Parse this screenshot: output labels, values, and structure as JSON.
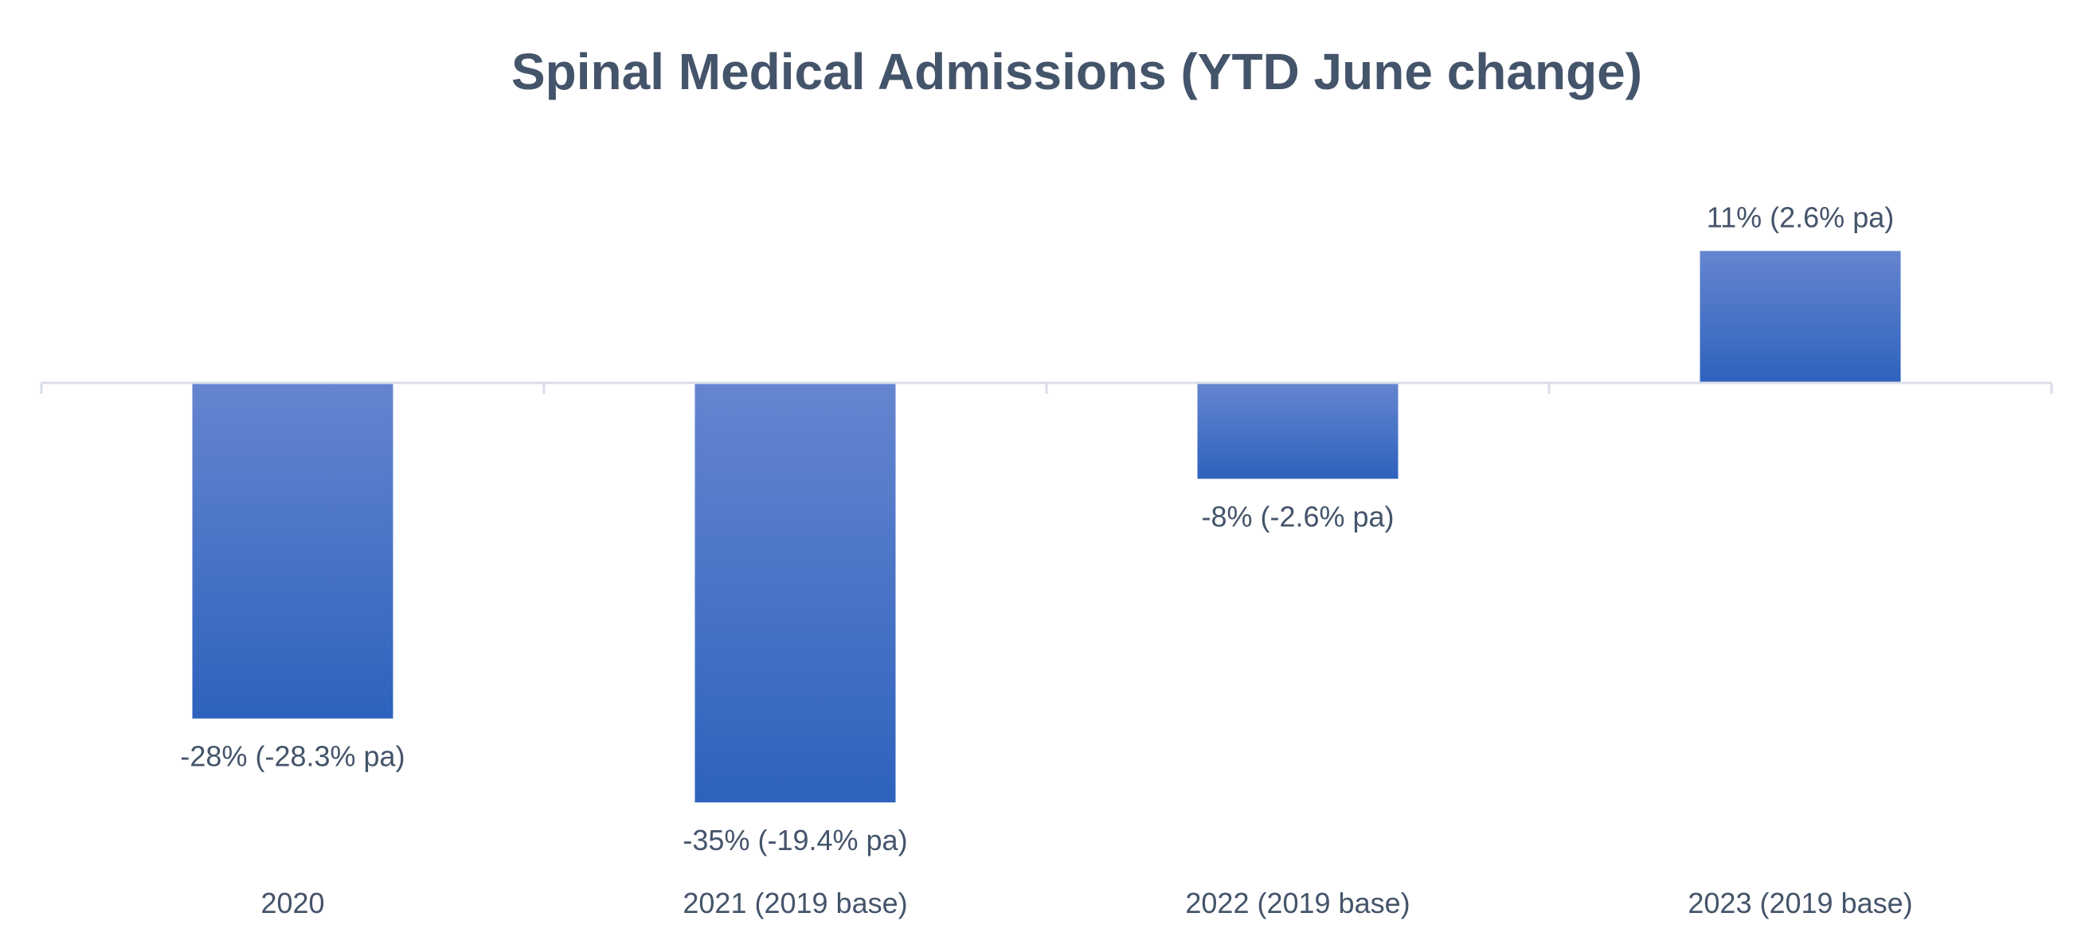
{
  "chart_data": {
    "type": "bar",
    "title": "Spinal Medical Admissions (YTD June change)",
    "categories": [
      "2020",
      "2021 (2019 base)",
      "2022 (2019 base)",
      "2023 (2019 base)"
    ],
    "values": [
      -28,
      -35,
      -8,
      11
    ],
    "data_labels": [
      "-28% (-28.3% pa)",
      "-35% (-19.4% pa)",
      "-8% (-2.6% pa)",
      "11% (2.6% pa)"
    ],
    "unit": "%",
    "xlabel": "",
    "ylabel": "",
    "ylim": [
      -38,
      18
    ],
    "grid": false,
    "legend": "none",
    "colors": {
      "bar_top": "#6585CF",
      "bar_bottom": "#2E62BD",
      "text": "#44546A",
      "axis": "#D9DEE8"
    }
  }
}
